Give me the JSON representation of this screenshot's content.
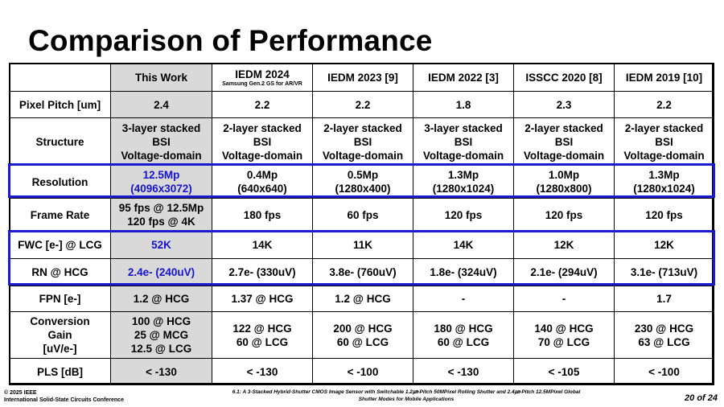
{
  "slide": {
    "title": "Comparison of Performance",
    "footer_left_1": "© 2025 IEEE",
    "footer_left_2": "International Solid-State Circuits Conference",
    "footer_center_1": "6.1: A 3-Stacked Hybrid-Shutter CMOS Image Sensor with Switchable 1.2㎛-Pitch 50MPixel Rolling Shutter and 2.4㎛-Pitch 12.5MPixel Global",
    "footer_center_2": "Shutter Modes for Mobile Applications",
    "page_number": "20 of 24"
  },
  "table": {
    "header": {
      "blank": "",
      "this_work": "This Work",
      "c1": "IEDM 2024",
      "c1_sub": "Samsung Gen.2 GS for AR/VR",
      "c2": "IEDM 2023 [9]",
      "c3": "IEDM 2022 [3]",
      "c4": "ISSCC 2020 [8]",
      "c5": "IEDM 2019 [10]"
    },
    "rows": {
      "pixel_pitch": {
        "label": "Pixel Pitch [um]",
        "tw": "2.4",
        "c1": "2.2",
        "c2": "2.2",
        "c3": "1.8",
        "c4": "2.3",
        "c5": "2.2"
      },
      "structure": {
        "label": "Structure",
        "tw": [
          "3-layer stacked",
          "BSI",
          "Voltage-domain"
        ],
        "c1": [
          "2-layer stacked",
          "BSI",
          "Voltage-domain"
        ],
        "c2": [
          "2-layer stacked",
          "BSI",
          "Voltage-domain"
        ],
        "c3": [
          "3-layer stacked",
          "BSI",
          "Voltage-domain"
        ],
        "c4": [
          "2-layer stacked",
          "BSI",
          "Voltage-domain"
        ],
        "c5": [
          "2-layer stacked",
          "BSI",
          "Voltage-domain"
        ]
      },
      "resolution": {
        "label": "Resolution",
        "tw": [
          "12.5Mp",
          "(4096x3072)"
        ],
        "c1": [
          "0.4Mp",
          "(640x640)"
        ],
        "c2": [
          "0.5Mp",
          "(1280x400)"
        ],
        "c3": [
          "1.3Mp",
          "(1280x1024)"
        ],
        "c4": [
          "1.0Mp",
          "(1280x800)"
        ],
        "c5": [
          "1.3Mp",
          "(1280x1024)"
        ]
      },
      "frame_rate": {
        "label": "Frame Rate",
        "tw": [
          "95 fps @ 12.5Mp",
          "120 fps @ 4K"
        ],
        "c1": "180 fps",
        "c2": "60 fps",
        "c3": "120 fps",
        "c4": "120 fps",
        "c5": "120 fps"
      },
      "fwc": {
        "label": "FWC [e-] @ LCG",
        "tw": "52K",
        "c1": "14K",
        "c2": "11K",
        "c3": "14K",
        "c4": "12K",
        "c5": "12K"
      },
      "rn": {
        "label": "RN @ HCG",
        "tw": "2.4e- (240uV)",
        "c1": "2.7e- (330uV)",
        "c2": "3.8e- (760uV)",
        "c3": "1.8e- (324uV)",
        "c4": "2.1e- (294uV)",
        "c5": "3.1e- (713uV)"
      },
      "fpn": {
        "label": "FPN [e-]",
        "tw": "1.2 @ HCG",
        "c1": "1.37 @ HCG",
        "c2": "1.2 @ HCG",
        "c3": "-",
        "c4": "-",
        "c5": "1.7"
      },
      "cg": {
        "label": [
          "Conversion",
          "Gain",
          "[uV/e-]"
        ],
        "tw": [
          "100 @ HCG",
          "25 @ MCG",
          "12.5 @ LCG"
        ],
        "c1": [
          "122 @ HCG",
          "60 @ LCG"
        ],
        "c2": [
          "200 @ HCG",
          "60 @ LCG"
        ],
        "c3": [
          "180 @ HCG",
          "60 @ LCG"
        ],
        "c4": [
          "140 @ HCG",
          "70 @ LCG"
        ],
        "c5": [
          "230 @ HCG",
          "63 @ LCG"
        ]
      },
      "pls": {
        "label": "PLS [dB]",
        "tw": "< -130",
        "c1": "< -130",
        "c2": "< -100",
        "c3": "< -130",
        "c4": "< -105",
        "c5": "< -100"
      }
    }
  },
  "colors": {
    "highlight_box": "#1a1ad0",
    "this_work_bg": "#d9d9d9",
    "this_work_highlight_text": "#1414d2"
  }
}
